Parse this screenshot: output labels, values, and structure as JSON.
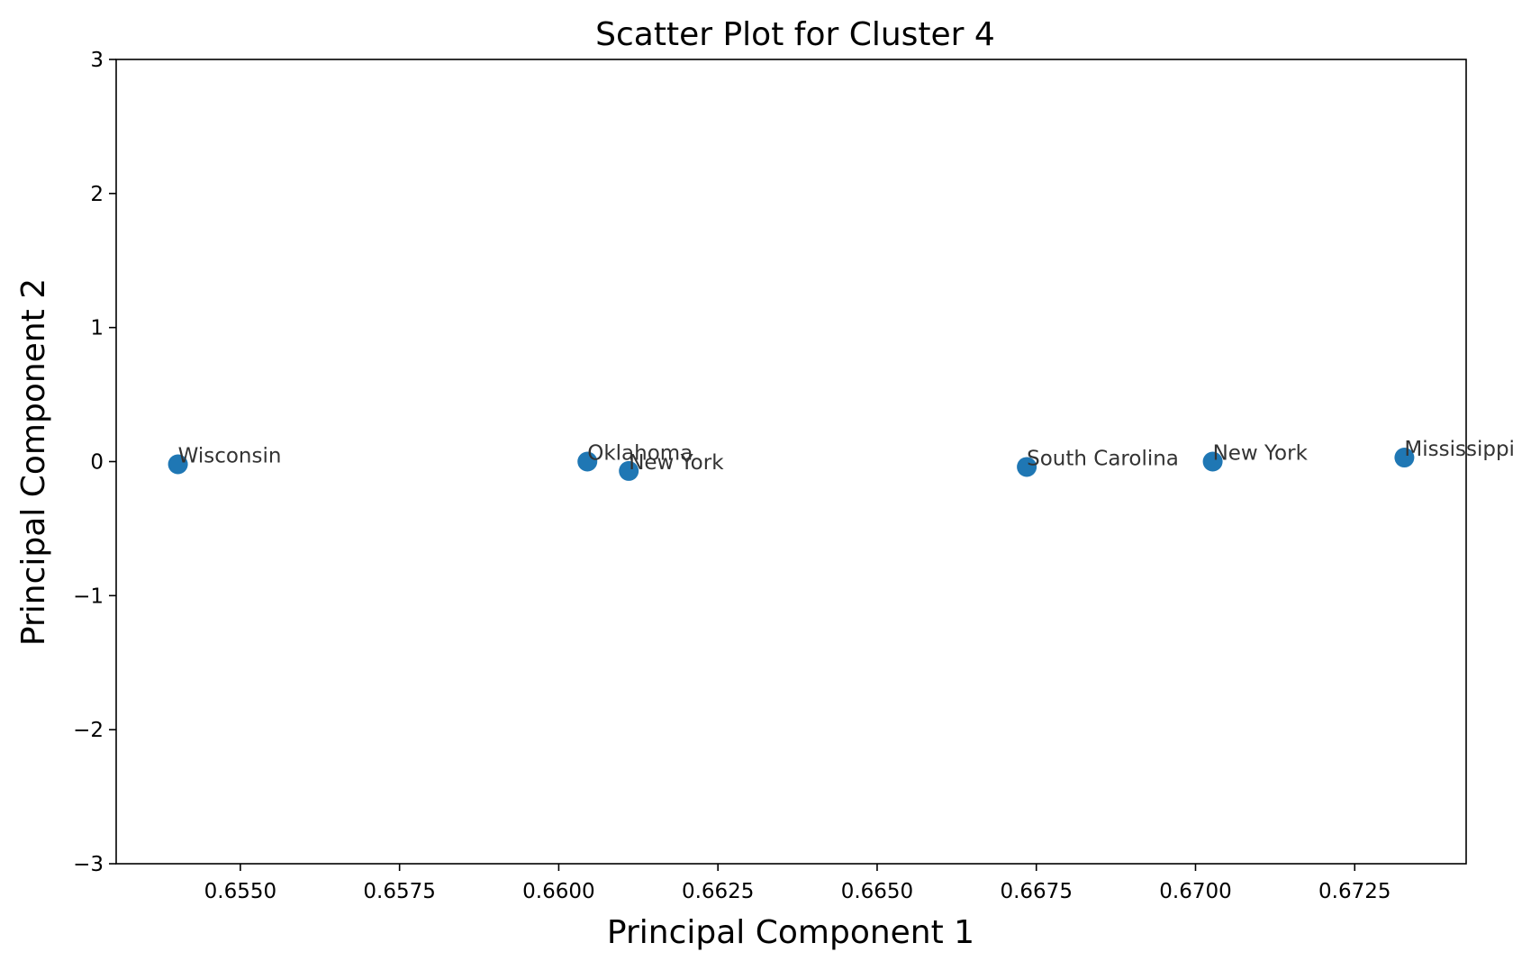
{
  "chart_data": {
    "type": "scatter",
    "title": "Scatter Plot for Cluster 4",
    "xlabel": "Principal Component 1",
    "ylabel": "Principal Component 2",
    "xlim": [
      0.65305,
      0.67425
    ],
    "ylim": [
      -3,
      3
    ],
    "xticks": [
      0.655,
      0.6575,
      0.66,
      0.6625,
      0.665,
      0.6675,
      0.67,
      0.6725
    ],
    "xtick_labels": [
      "0.6550",
      "0.6575",
      "0.6600",
      "0.6625",
      "0.6650",
      "0.6675",
      "0.6700",
      "0.6725"
    ],
    "yticks": [
      -3,
      -2,
      -1,
      0,
      1,
      2,
      3
    ],
    "ytick_labels": [
      "−3",
      "−2",
      "−1",
      "0",
      "1",
      "2",
      "3"
    ],
    "grid": false,
    "marker_color": "#1f77b4",
    "points": [
      {
        "label": "Wisconsin",
        "x": 0.65402,
        "y": -0.02
      },
      {
        "label": "Oklahoma",
        "x": 0.66045,
        "y": 0.0
      },
      {
        "label": "New York",
        "x": 0.6611,
        "y": -0.07
      },
      {
        "label": "South Carolina",
        "x": 0.66735,
        "y": -0.04
      },
      {
        "label": "New York",
        "x": 0.67027,
        "y": 0.0
      },
      {
        "label": "Mississippi",
        "x": 0.67328,
        "y": 0.03
      }
    ]
  }
}
